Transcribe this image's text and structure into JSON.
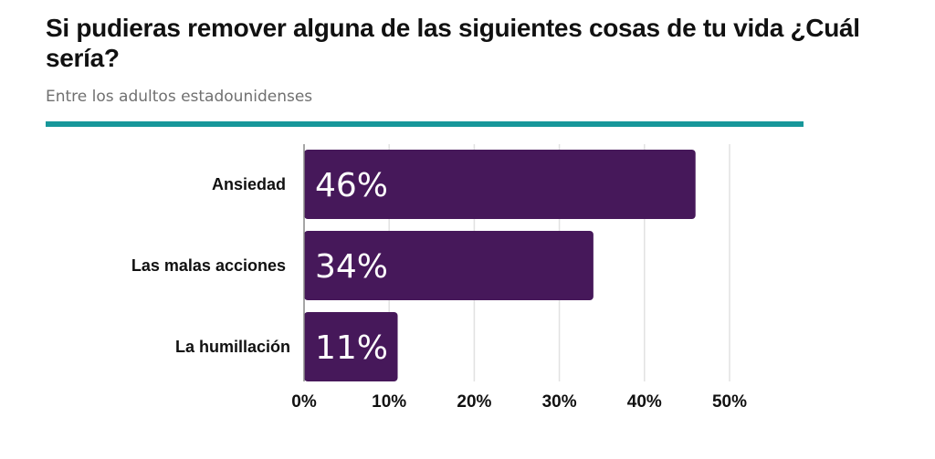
{
  "chart_data": {
    "type": "bar",
    "orientation": "horizontal",
    "title": "Si pudieras remover alguna de las siguientes cosas de tu vida ¿Cuál sería?",
    "subtitle": "Entre los adultos estadounidenses",
    "categories": [
      "Ansiedad",
      "Las malas acciones",
      "La humillación"
    ],
    "values": [
      46,
      34,
      11
    ],
    "value_labels": [
      "46%",
      "34%",
      "11%"
    ],
    "xlim": [
      0,
      50
    ],
    "xticks": [
      0,
      10,
      20,
      30,
      40,
      50
    ],
    "xtick_labels": [
      "0%",
      "10%",
      "20%",
      "30%",
      "40%",
      "50%"
    ],
    "xlabel": "",
    "ylabel": "",
    "grid": true,
    "legend": "none"
  },
  "colors": {
    "bar": "#46185a",
    "accent_rule": "#17979a",
    "grid": "#e2e2e2",
    "baseline": "#888888"
  }
}
